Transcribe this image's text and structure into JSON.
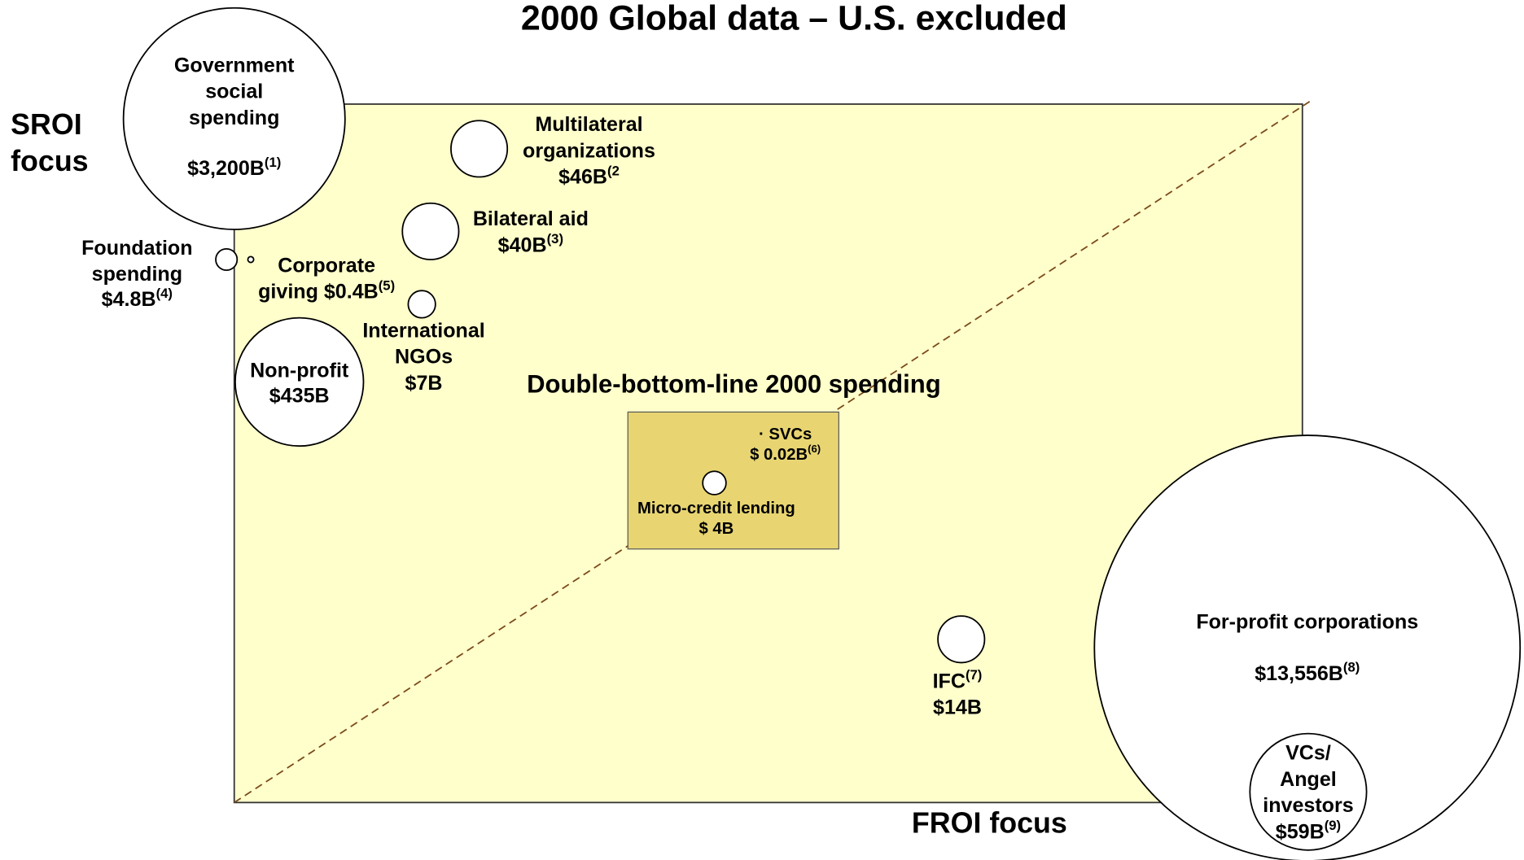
{
  "title": "2000 Global data – U.S. excluded",
  "y_axis_label": [
    "SROI",
    "focus"
  ],
  "x_axis_label": "FROI focus",
  "box_label": "Double-bottom-line 2000 spending",
  "nodes": [
    {
      "lines": [
        "Government",
        "social",
        "spending",
        "$3,200B"
      ],
      "note": "(1)"
    },
    {
      "lines": [
        "Multilateral",
        "organizations",
        "$46B"
      ],
      "note": "(2"
    },
    {
      "lines": [
        "Bilateral aid",
        "$40B"
      ],
      "note": "(3)"
    },
    {
      "lines": [
        "Foundation",
        "spending",
        "$4.8B"
      ],
      "note": "(4)"
    },
    {
      "lines": [
        "Corporate",
        "giving $0.4B"
      ],
      "note": "(5)"
    },
    {
      "lines": [
        "International",
        "NGOs",
        "$7B"
      ]
    },
    {
      "lines": [
        "Non-profit",
        "$435B"
      ]
    },
    {
      "lines": [
        "· SVCs",
        "$ 0.02B"
      ],
      "note": "(6)"
    },
    {
      "lines": [
        "Micro-credit lending",
        "$ 4B"
      ]
    },
    {
      "lines": [
        "IFC",
        "$14B"
      ],
      "note": "(7)",
      "note_line": 0
    },
    {
      "lines": [
        "For-profit corporations",
        "$13,556B"
      ],
      "note": "(8)"
    },
    {
      "lines": [
        "VCs/",
        "Angel",
        "investors",
        "$59B"
      ],
      "note": "(9)"
    }
  ]
}
